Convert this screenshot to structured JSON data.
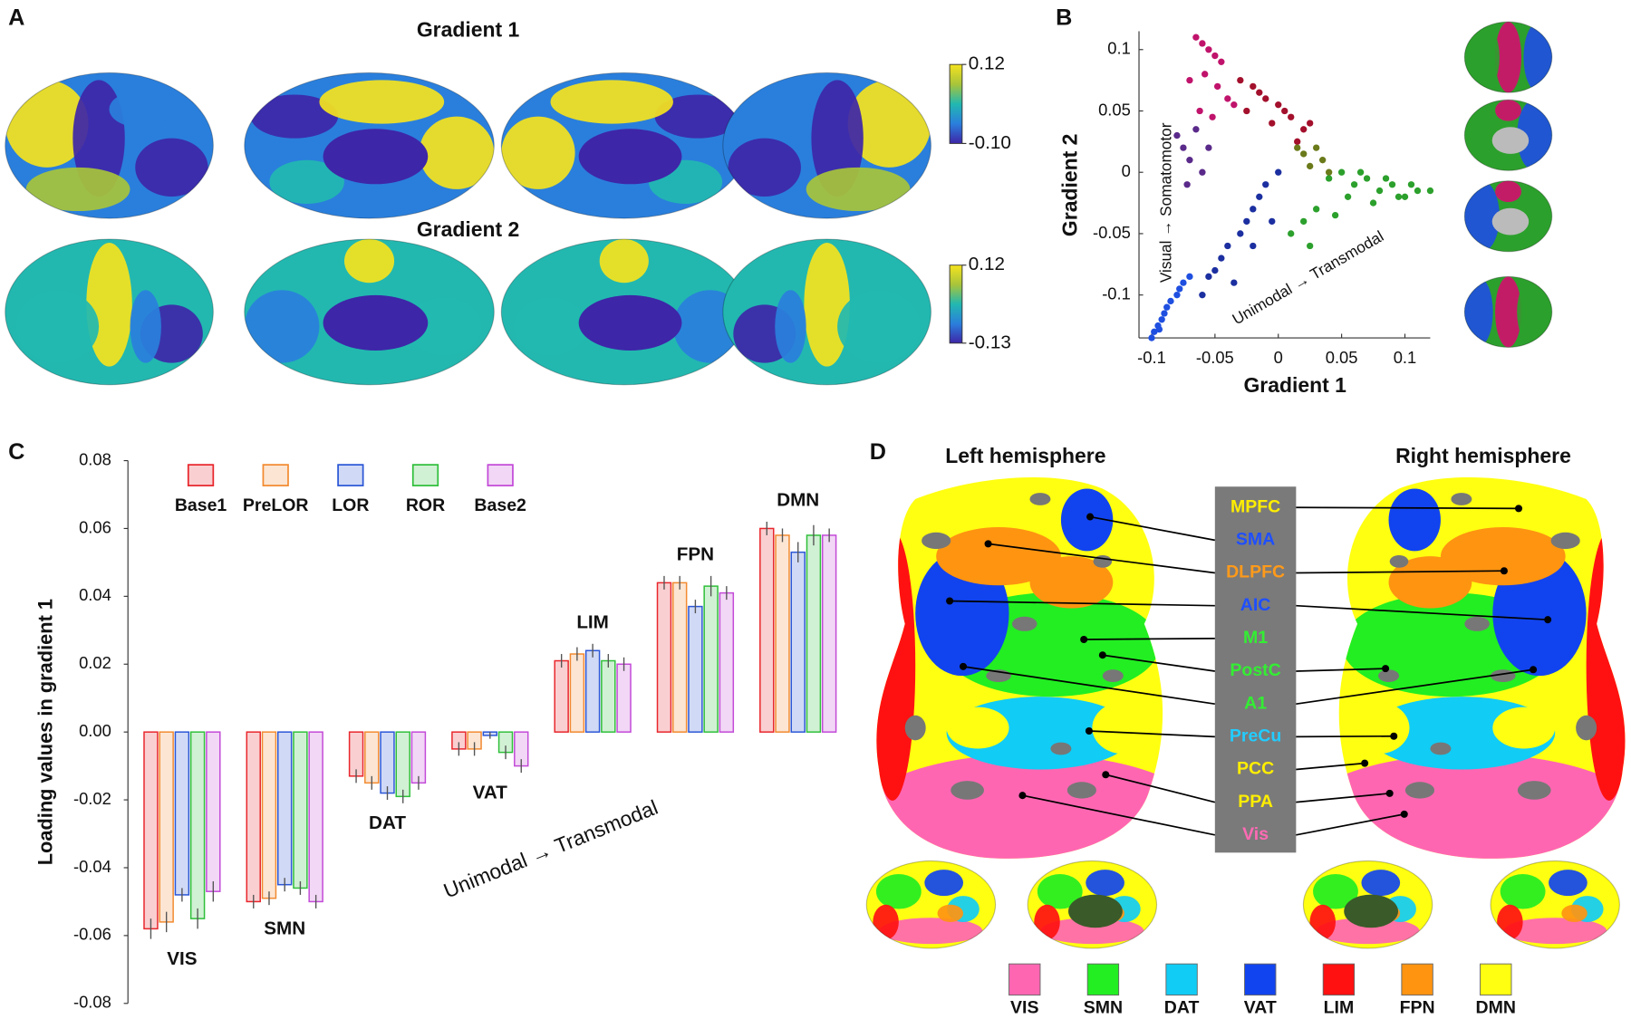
{
  "panel_labels": [
    "A",
    "B",
    "C",
    "D"
  ],
  "panel_a": {
    "colormap": [
      "#3e26a8",
      "#2a7fdc",
      "#22b8b0",
      "#a8c43a",
      "#f5e31e"
    ],
    "maps": [
      {
        "title": "Gradient 1",
        "colorbar": {
          "lim": [
            -0.1,
            0.12
          ],
          "ticks": [
            {
              "value": -0.1,
              "label": "-0.10"
            },
            0.12
          ]
        }
      },
      {
        "title": "Gradient 2",
        "colorbar": {
          "lim": [
            -0.13,
            0.12
          ],
          "ticks": [
            -0.13,
            0.12
          ]
        }
      }
    ]
  },
  "chart_data": [
    {
      "type": "scatter",
      "xlabel": "Gradient 1",
      "ylabel": "Gradient 2",
      "annotations": [
        "Visual → Somatomotor",
        "Unimodal → Transmodal"
      ],
      "xlim": [
        -0.11,
        0.12
      ],
      "ylim": [
        -0.135,
        0.115
      ],
      "xticks": [
        -0.1,
        -0.05,
        0,
        0.05,
        0.1
      ],
      "yticks": [
        -0.1,
        -0.05,
        0,
        0.05,
        0.1
      ],
      "series": [
        {
          "color": "#c0136b",
          "x": [
            -0.065,
            -0.06,
            -0.055,
            -0.05,
            -0.045,
            -0.07,
            -0.058,
            -0.048,
            -0.04,
            -0.062,
            -0.052,
            -0.035
          ],
          "values": [
            0.11,
            0.105,
            0.1,
            0.095,
            0.09,
            0.075,
            0.08,
            0.07,
            0.06,
            0.05,
            0.045,
            0.055
          ]
        },
        {
          "color": "#a3102c",
          "x": [
            -0.03,
            -0.02,
            -0.015,
            -0.01,
            0,
            0.005,
            0.01,
            0.02,
            -0.025,
            -0.005,
            0.015,
            0.025
          ],
          "values": [
            0.075,
            0.07,
            0.065,
            0.06,
            0.055,
            0.05,
            0.045,
            0.035,
            0.05,
            0.04,
            0.025,
            0.04
          ]
        },
        {
          "color": "#5a2a8a",
          "x": [
            -0.08,
            -0.075,
            -0.07,
            -0.065,
            -0.06,
            -0.072,
            -0.055
          ],
          "values": [
            0.03,
            0.02,
            0.01,
            0.035,
            0.0,
            -0.01,
            0.02
          ]
        },
        {
          "color": "#6b7a1a",
          "x": [
            0.02,
            0.025,
            0.03,
            0.035,
            0.04,
            0.015
          ],
          "values": [
            0.015,
            0.005,
            0.02,
            0.01,
            0.0,
            0.02
          ]
        },
        {
          "color": "#2ca02c",
          "x": [
            0.04,
            0.05,
            0.06,
            0.07,
            0.08,
            0.09,
            0.1,
            0.11,
            0.12,
            0.055,
            0.065,
            0.075,
            0.03,
            0.02,
            0.01,
            0.025,
            0.045,
            0.085,
            0.095,
            0.105
          ],
          "values": [
            -0.005,
            0,
            -0.01,
            -0.005,
            -0.015,
            -0.01,
            -0.02,
            -0.015,
            -0.015,
            -0.02,
            0.0,
            -0.025,
            -0.03,
            -0.04,
            -0.05,
            -0.06,
            -0.035,
            -0.005,
            -0.02,
            -0.01
          ]
        },
        {
          "color": "#1c2fa0",
          "x": [
            -0.05,
            -0.045,
            -0.04,
            -0.03,
            -0.025,
            -0.02,
            -0.015,
            -0.01,
            0,
            -0.035,
            -0.005,
            -0.06,
            -0.055,
            -0.02
          ],
          "values": [
            -0.08,
            -0.07,
            -0.06,
            -0.05,
            -0.04,
            -0.03,
            -0.02,
            -0.01,
            0,
            -0.09,
            -0.04,
            -0.1,
            -0.085,
            -0.06
          ]
        },
        {
          "color": "#1f4fe0",
          "x": [
            -0.1,
            -0.098,
            -0.095,
            -0.092,
            -0.09,
            -0.088,
            -0.085,
            -0.08,
            -0.078,
            -0.075,
            -0.07,
            -0.094
          ],
          "values": [
            -0.135,
            -0.13,
            -0.125,
            -0.12,
            -0.115,
            -0.11,
            -0.105,
            -0.1,
            -0.095,
            -0.09,
            -0.085,
            -0.128
          ]
        }
      ]
    },
    {
      "type": "bar",
      "ylabel": "Loading values in gradient 1",
      "annotation": "Unimodal → Transmodal",
      "categories": [
        "VIS",
        "SMN",
        "DAT",
        "VAT",
        "LIM",
        "FPN",
        "DMN"
      ],
      "ylim": [
        -0.08,
        0.08
      ],
      "yticks": [
        {
          "value": -0.08,
          "label": "-0.08"
        },
        {
          "value": -0.06,
          "label": "-0.06"
        },
        {
          "value": -0.04,
          "label": "-0.04"
        },
        {
          "value": -0.02,
          "label": "-0.02"
        },
        {
          "value": 0,
          "label": "0.00"
        },
        {
          "value": 0.02,
          "label": "0.02"
        },
        {
          "value": 0.04,
          "label": "0.04"
        },
        {
          "value": 0.06,
          "label": "0.06"
        },
        {
          "value": 0.08,
          "label": "0.08"
        }
      ],
      "series": [
        {
          "name": "Base1",
          "color": "#e8262c",
          "values": [
            -0.058,
            -0.05,
            -0.013,
            -0.005,
            0.021,
            0.044,
            0.06
          ],
          "errors": [
            0.003,
            0.002,
            0.002,
            0.002,
            0.002,
            0.002,
            0.002
          ]
        },
        {
          "name": "PreLOR",
          "color": "#f28a30",
          "values": [
            -0.056,
            -0.049,
            -0.015,
            -0.005,
            0.023,
            0.044,
            0.058
          ],
          "errors": [
            0.003,
            0.002,
            0.002,
            0.002,
            0.002,
            0.002,
            0.002
          ]
        },
        {
          "name": "LOR",
          "color": "#2b57d6",
          "values": [
            -0.048,
            -0.045,
            -0.018,
            -0.001,
            0.024,
            0.037,
            0.053
          ],
          "errors": [
            0.002,
            0.002,
            0.002,
            0.001,
            0.002,
            0.002,
            0.003
          ]
        },
        {
          "name": "ROR",
          "color": "#2fbf3a",
          "values": [
            -0.055,
            -0.046,
            -0.019,
            -0.006,
            0.021,
            0.043,
            0.058
          ],
          "errors": [
            0.003,
            0.002,
            0.002,
            0.002,
            0.002,
            0.003,
            0.003
          ]
        },
        {
          "name": "Base2",
          "color": "#c34ad8",
          "values": [
            -0.047,
            -0.05,
            -0.015,
            -0.01,
            0.02,
            0.041,
            0.058
          ],
          "errors": [
            0.003,
            0.002,
            0.002,
            0.002,
            0.002,
            0.002,
            0.002
          ]
        }
      ]
    }
  ],
  "panel_d": {
    "left_title": "Left hemisphere",
    "right_title": "Right hemisphere",
    "regions": [
      {
        "label": "MPFC",
        "color": "#ffee00"
      },
      {
        "label": "SMA",
        "color": "#1f4fff"
      },
      {
        "label": "DLPFC",
        "color": "#ff9a1a"
      },
      {
        "label": "AIC",
        "color": "#1f4fff"
      },
      {
        "label": "M1",
        "color": "#33ee33"
      },
      {
        "label": "PostC",
        "color": "#33ee33"
      },
      {
        "label": "A1",
        "color": "#33ee33"
      },
      {
        "label": "PreCu",
        "color": "#22ccff"
      },
      {
        "label": "PCC",
        "color": "#ffee00"
      },
      {
        "label": "PPA",
        "color": "#ffee00"
      },
      {
        "label": "Vis",
        "color": "#ff6ab4"
      }
    ],
    "networks": [
      {
        "label": "VIS",
        "color": "#ff66b2"
      },
      {
        "label": "SMN",
        "color": "#22ee22"
      },
      {
        "label": "DAT",
        "color": "#11ccf5"
      },
      {
        "label": "VAT",
        "color": "#1144ee"
      },
      {
        "label": "LIM",
        "color": "#ff1111"
      },
      {
        "label": "FPN",
        "color": "#ff9411"
      },
      {
        "label": "DMN",
        "color": "#ffff11"
      }
    ]
  }
}
